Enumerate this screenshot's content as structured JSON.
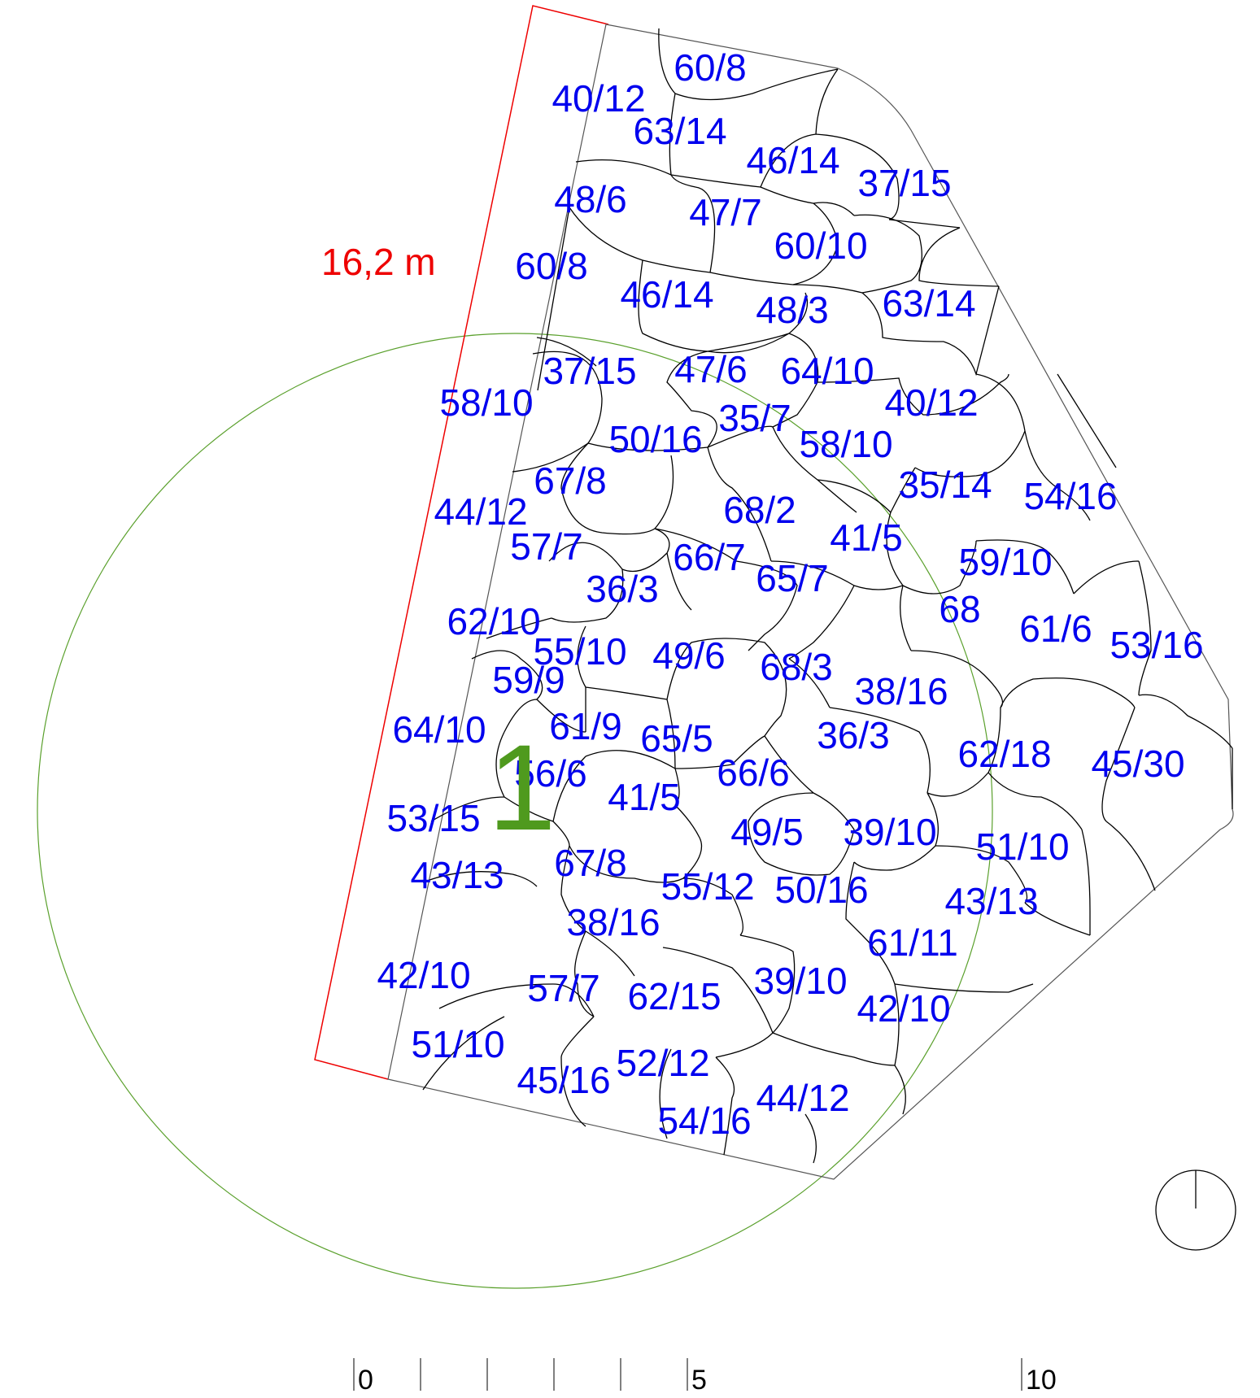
{
  "dimension": {
    "label": "16,2 m",
    "color": "#ee0000"
  },
  "tree": {
    "number": "1",
    "color": "#4f9a1e"
  },
  "label_color": "#0000ee",
  "stones": [
    "60/8",
    "40/12",
    "63/14",
    "46/14",
    "37/15",
    "48/6",
    "47/7",
    "60/10",
    "60/8",
    "46/14",
    "48/3",
    "63/14",
    "37/15",
    "47/6",
    "64/10",
    "58/10",
    "40/12",
    "35/7",
    "50/16",
    "58/10",
    "67/8",
    "35/14",
    "54/16",
    "44/12",
    "68/2",
    "57/7",
    "66/7",
    "41/5",
    "59/10",
    "36/3",
    "65/7",
    "68",
    "61/6",
    "62/10",
    "53/16",
    "55/10",
    "49/6",
    "68/3",
    "59/9",
    "38/16",
    "64/10",
    "61/9",
    "65/5",
    "36/3",
    "62/18",
    "45/30",
    "56/6",
    "66/6",
    "41/5",
    "53/15",
    "49/5",
    "39/10",
    "51/10",
    "67/8",
    "43/13",
    "55/12",
    "50/16",
    "43/13",
    "38/16",
    "61/11",
    "42/10",
    "57/7",
    "62/15",
    "39/10",
    "42/10",
    "51/10",
    "52/12",
    "45/16",
    "44/12",
    "54/16"
  ],
  "scale_bar": {
    "labels": [
      "0",
      "5",
      "10"
    ]
  },
  "north_arrow": {
    "icon": "north-arrow-icon"
  }
}
